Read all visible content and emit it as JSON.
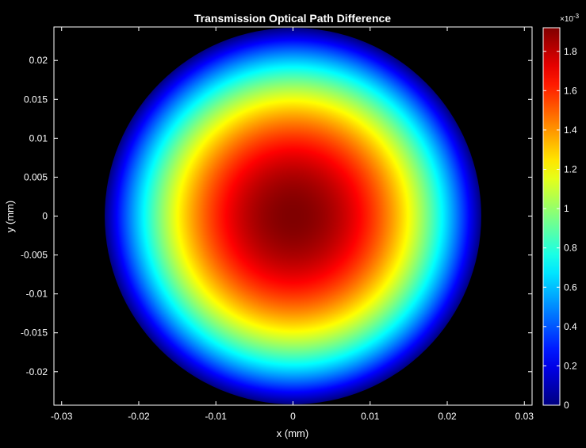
{
  "chart_data": {
    "type": "heatmap",
    "title": "Transmission Optical Path Difference",
    "xlabel": "x (mm)",
    "ylabel": "y (mm)",
    "xlim": [
      -0.031,
      0.031
    ],
    "ylim": [
      -0.0243,
      0.0243
    ],
    "x_ticks": [
      -0.03,
      -0.02,
      -0.01,
      0,
      0.01,
      0.02,
      0.03
    ],
    "x_tick_labels": [
      "-0.03",
      "-0.02",
      "-0.01",
      "0",
      "0.01",
      "0.02",
      "0.03"
    ],
    "y_ticks": [
      -0.02,
      -0.015,
      -0.01,
      -0.005,
      0,
      0.005,
      0.01,
      0.015,
      0.02
    ],
    "y_tick_labels": [
      "-0.02",
      "-0.015",
      "-0.01",
      "-0.005",
      "0",
      "0.005",
      "0.01",
      "0.015",
      "0.02"
    ],
    "aperture": {
      "shape": "circle",
      "center": [
        0,
        0
      ],
      "radius": 0.0243
    },
    "field": {
      "model": "radial_quadratic",
      "peak_value": 0.00192,
      "edge_value": 0.0,
      "background": "#000000"
    },
    "colorbar": {
      "colormap": "jet",
      "range": [
        0,
        0.00192
      ],
      "ticks": [
        0,
        0.0002,
        0.0004,
        0.0006,
        0.0008,
        0.001,
        0.0012,
        0.0014,
        0.0016,
        0.0018
      ],
      "tick_labels": [
        "0",
        "0.2",
        "0.4",
        "0.6",
        "0.8",
        "1",
        "1.2",
        "1.4",
        "1.6",
        "1.8"
      ],
      "exponent_label": "×10",
      "exponent_value": "-3"
    },
    "grid": false,
    "background_color": "#000000",
    "axis_color": "#ffffff"
  }
}
